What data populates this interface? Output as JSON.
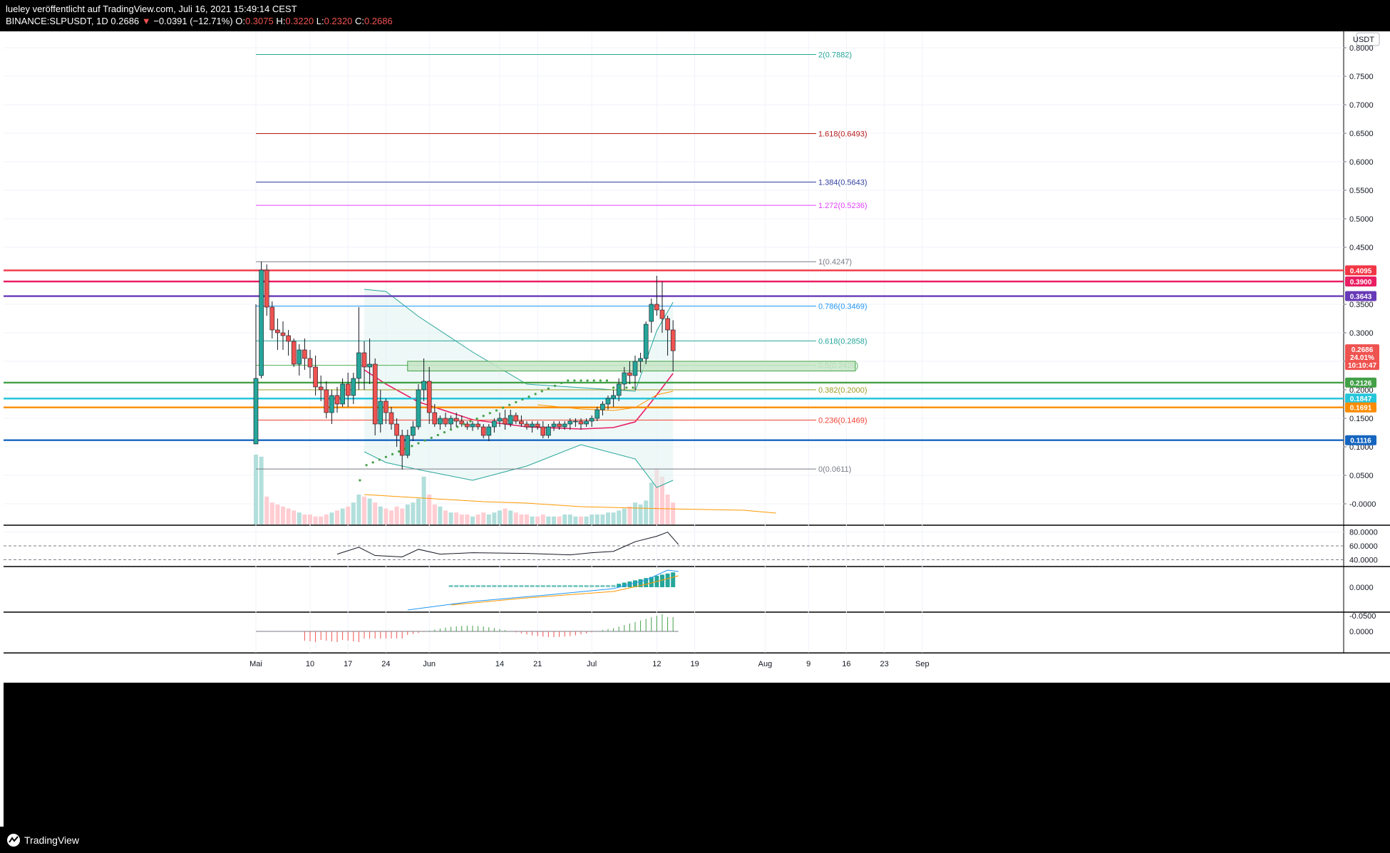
{
  "header": {
    "publisher": "lueley veröffentlicht auf TradingView.com, Juli 16, 2021 15:49:14 CEST",
    "symbol": "BINANCE:SLPUSDT, 1D",
    "last": "0.2686",
    "change_arrow": "▼",
    "change": "−0.0391 (−12.71%)",
    "o_label": "O:",
    "o": "0.3075",
    "h_label": "H:",
    "h": "0.3220",
    "l_label": "L:",
    "l": "0.2320",
    "c_label": "C:",
    "c": "0.2686"
  },
  "footer": {
    "brand": "TradingView"
  },
  "price_axis": {
    "currency": "USDT",
    "labels": [
      "0.8000",
      "0.7500",
      "0.7000",
      "0.6500",
      "0.6000",
      "0.5500",
      "0.5000",
      "0.4500",
      "0.3500",
      "0.3000",
      "0.2500",
      "0.2000",
      "0.1500",
      "0.1000",
      "0.0500",
      "-0.0000"
    ]
  },
  "indicator_axes": {
    "rsi": [
      "80.0000",
      "60.0000",
      "40.0000"
    ],
    "macd": [
      "0.0000",
      "-0.0500"
    ],
    "osc": [
      "0.0000"
    ]
  },
  "time_axis": [
    "Mai",
    "10",
    "17",
    "24",
    "Jun",
    "14",
    "21",
    "Jul",
    "12",
    "19",
    "Aug",
    "9",
    "16",
    "23",
    "Sep"
  ],
  "fib_levels": [
    {
      "label": "2(0.7882)",
      "color": "#26a69a"
    },
    {
      "label": "1.618(0.6493)",
      "color": "#b71c1c"
    },
    {
      "label": "1.384(0.5643)",
      "color": "#303f9f"
    },
    {
      "label": "1.272(0.5236)",
      "color": "#e040fb"
    },
    {
      "label": "1(0.4247)",
      "color": "#787b86"
    },
    {
      "label": "0.786(0.3469)",
      "color": "#2196f3"
    },
    {
      "label": "0.618(0.2858)",
      "color": "#26a69a"
    },
    {
      "label": "0.5(0.2429)",
      "color": "#4caf50"
    },
    {
      "label": "0.382(0.2000)",
      "color": "#9e9d24"
    },
    {
      "label": "0.236(0.1469)",
      "color": "#f44336"
    },
    {
      "label": "0(0.0611)",
      "color": "#787b86"
    }
  ],
  "horizontal_levels": [
    {
      "label": "0.4095",
      "color": "#f23645"
    },
    {
      "label": "0.3900",
      "color": "#e91e63"
    },
    {
      "label": "0.3643",
      "color": "#673ab7"
    },
    {
      "label": "0.2126",
      "color": "#43a047"
    },
    {
      "label": "0.1847",
      "color": "#26c6da"
    },
    {
      "label": "0.1691",
      "color": "#fb8c00"
    },
    {
      "label": "0.1116",
      "color": "#1565c0"
    }
  ],
  "price_tag": {
    "price": "0.2686",
    "pct": "24.01%",
    "countdown": "10:10:47",
    "color": "#ef5350"
  }
}
